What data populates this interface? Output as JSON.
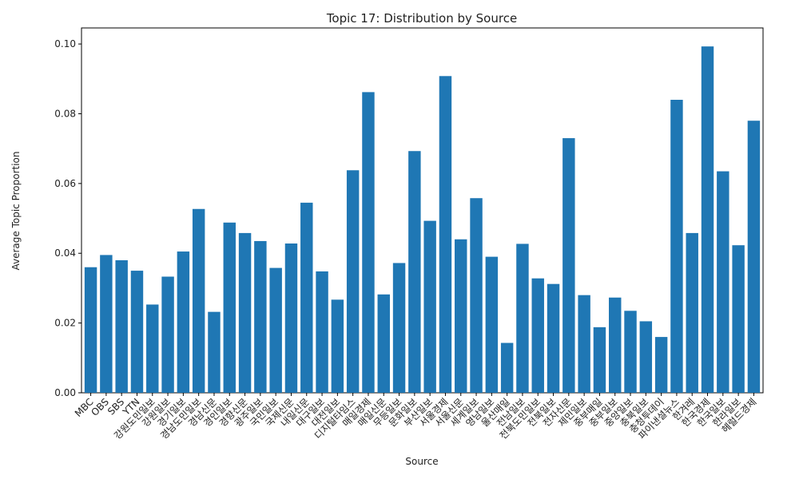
{
  "chart_data": {
    "type": "bar",
    "title": "Topic 17: Distribution by Source",
    "x_label": "Source",
    "y_label": "Average Topic Proportion",
    "categories": [
      "MBC",
      "OBS",
      "SBS",
      "YTN",
      "강원도민일보",
      "강원일보",
      "경기일보",
      "경남도민일보",
      "경남신문",
      "경인일보",
      "경향신문",
      "광주일보",
      "국민일보",
      "국제신문",
      "내일신문",
      "대구일보",
      "대전일보",
      "디지털타임스",
      "매일경제",
      "매일신문",
      "무등일보",
      "문화일보",
      "부산일보",
      "서울경제",
      "서울신문",
      "세계일보",
      "영남일보",
      "울산매일",
      "전남일보",
      "전북도민일보",
      "전북일보",
      "전자신문",
      "제민일보",
      "중부매일",
      "중부일보",
      "중앙일보",
      "충북일보",
      "충청투데이",
      "파이낸셜뉴스",
      "한겨레",
      "한국경제",
      "한국일보",
      "한라일보",
      "헤럴드경제"
    ],
    "values": [
      0.036,
      0.0395,
      0.038,
      0.035,
      0.0253,
      0.0333,
      0.0405,
      0.0527,
      0.0232,
      0.0488,
      0.0458,
      0.0435,
      0.0358,
      0.0428,
      0.0545,
      0.0348,
      0.0267,
      0.0638,
      0.0862,
      0.0282,
      0.0372,
      0.0693,
      0.0493,
      0.0908,
      0.044,
      0.0558,
      0.039,
      0.0143,
      0.0427,
      0.0328,
      0.0312,
      0.073,
      0.028,
      0.0188,
      0.0273,
      0.0235,
      0.0205,
      0.016,
      0.084,
      0.0458,
      0.0993,
      0.0635,
      0.0423,
      0.078
    ],
    "color": "#1f77b4",
    "ylim": [
      0,
      0.1046
    ],
    "yticks": [
      {
        "value": 0,
        "label": "0.00"
      },
      {
        "value": 0.02,
        "label": "0.02"
      },
      {
        "value": 0.04,
        "label": "0.04"
      },
      {
        "value": 0.06,
        "label": "0.06"
      },
      {
        "value": 0.08,
        "label": "0.08"
      },
      {
        "value": 0.1,
        "label": "0.10"
      }
    ],
    "grid": false
  }
}
